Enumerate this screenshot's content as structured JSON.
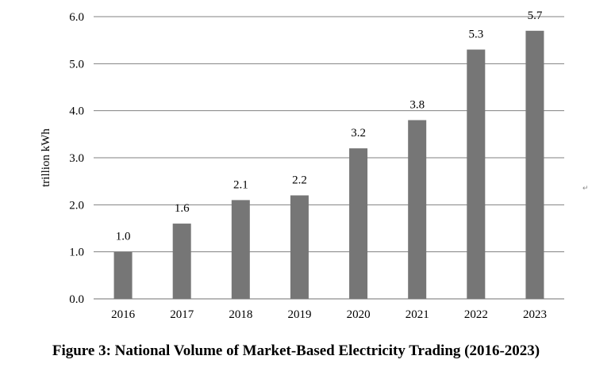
{
  "chart_data": {
    "type": "bar",
    "title": "Figure 3: National Volume of Market-Based Electricity Trading (2016-2023)",
    "xlabel": "",
    "ylabel": "trillion kWh",
    "categories": [
      "2016",
      "2017",
      "2018",
      "2019",
      "2020",
      "2021",
      "2022",
      "2023"
    ],
    "values": [
      1.0,
      1.6,
      2.1,
      2.2,
      3.2,
      3.8,
      5.3,
      5.7
    ],
    "data_labels": [
      "1.0",
      "1.6",
      "2.1",
      "2.2",
      "3.2",
      "3.8",
      "5.3",
      "5.7"
    ],
    "ylim": [
      0,
      6
    ],
    "yticks": [
      "0.0",
      "1.0",
      "2.0",
      "3.0",
      "4.0",
      "5.0",
      "6.0"
    ],
    "grid": true,
    "legend": "none",
    "bar_color": "#767676",
    "grid_color": "#808080"
  },
  "paragraph_mark": "↵"
}
